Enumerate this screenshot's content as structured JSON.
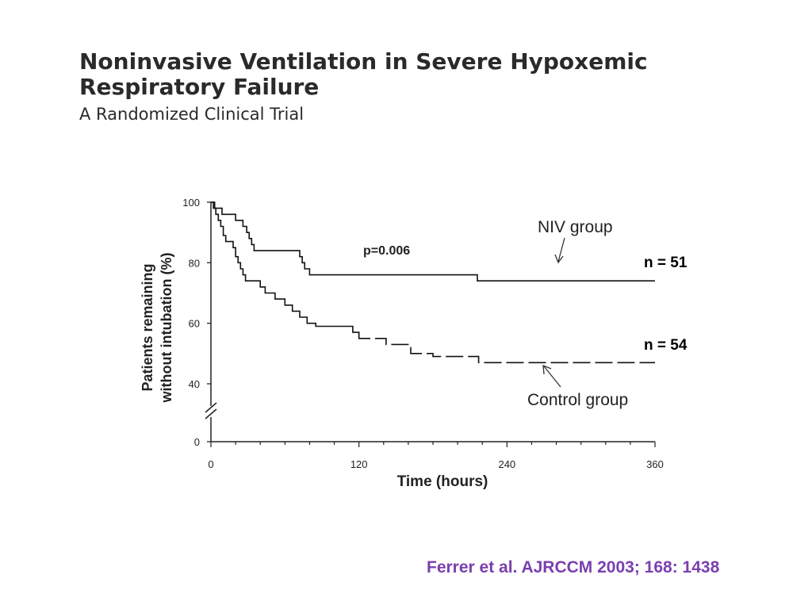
{
  "slide": {
    "title_line1": "Noninvasive Ventilation in Severe Hypoxemic",
    "title_line2": "Respiratory Failure",
    "subtitle": "A Randomized Clinical Trial",
    "citation": "Ferrer et al. AJRCCM 2003; 168: 1438"
  },
  "chart_data": {
    "type": "line",
    "title": "",
    "xlabel": "Time (hours)",
    "ylabel_line1": "Patients remaining",
    "ylabel_line2": "without intubation (%)",
    "xlim": [
      0,
      360
    ],
    "ylim": [
      0,
      100
    ],
    "y_axis_break": [
      0,
      40
    ],
    "x_ticks": [
      0,
      120,
      240,
      360
    ],
    "y_ticks": [
      0,
      40,
      60,
      80,
      100
    ],
    "grid": false,
    "annotations": {
      "p_value": "p=0.006",
      "niv_label": "NIV group",
      "control_label": "Control group",
      "niv_n": "n = 51",
      "control_n": "n = 54"
    },
    "series": [
      {
        "name": "NIV group",
        "style": "solid",
        "color": "#111111",
        "points": [
          [
            0,
            100
          ],
          [
            3,
            100
          ],
          [
            3,
            98
          ],
          [
            9,
            98
          ],
          [
            9,
            96
          ],
          [
            20,
            96
          ],
          [
            20,
            94
          ],
          [
            26,
            94
          ],
          [
            26,
            92
          ],
          [
            29,
            92
          ],
          [
            29,
            90
          ],
          [
            31,
            90
          ],
          [
            31,
            88
          ],
          [
            33,
            88
          ],
          [
            33,
            86
          ],
          [
            35,
            86
          ],
          [
            35,
            84
          ],
          [
            72,
            84
          ],
          [
            72,
            82
          ],
          [
            74,
            82
          ],
          [
            74,
            80
          ],
          [
            76,
            80
          ],
          [
            76,
            78
          ],
          [
            80,
            78
          ],
          [
            80,
            76
          ],
          [
            216,
            76
          ],
          [
            216,
            74
          ],
          [
            360,
            74
          ]
        ]
      },
      {
        "name": "Control group",
        "style": "step-dashed-end",
        "color": "#111111",
        "points": [
          [
            0,
            100
          ],
          [
            2,
            100
          ],
          [
            2,
            98
          ],
          [
            4,
            98
          ],
          [
            4,
            96
          ],
          [
            6,
            96
          ],
          [
            6,
            94
          ],
          [
            8,
            94
          ],
          [
            8,
            92
          ],
          [
            10,
            92
          ],
          [
            10,
            89
          ],
          [
            12,
            89
          ],
          [
            12,
            87
          ],
          [
            18,
            87
          ],
          [
            18,
            85
          ],
          [
            20,
            85
          ],
          [
            20,
            82
          ],
          [
            22,
            82
          ],
          [
            22,
            80
          ],
          [
            24,
            80
          ],
          [
            24,
            78
          ],
          [
            26,
            78
          ],
          [
            26,
            76
          ],
          [
            28,
            76
          ],
          [
            28,
            74
          ],
          [
            40,
            74
          ],
          [
            40,
            72
          ],
          [
            44,
            72
          ],
          [
            44,
            70
          ],
          [
            52,
            70
          ],
          [
            52,
            68
          ],
          [
            60,
            68
          ],
          [
            60,
            66
          ],
          [
            66,
            66
          ],
          [
            66,
            64
          ],
          [
            72,
            64
          ],
          [
            72,
            62
          ],
          [
            78,
            62
          ],
          [
            78,
            60
          ],
          [
            85,
            60
          ],
          [
            85,
            59
          ],
          [
            115,
            59
          ],
          [
            115,
            57
          ],
          [
            120,
            57
          ],
          [
            120,
            55
          ],
          [
            142,
            55
          ],
          [
            142,
            53
          ],
          [
            162,
            53
          ],
          [
            162,
            50
          ],
          [
            180,
            50
          ],
          [
            180,
            49
          ],
          [
            217,
            49
          ],
          [
            217,
            47
          ],
          [
            360,
            47
          ]
        ]
      }
    ]
  }
}
